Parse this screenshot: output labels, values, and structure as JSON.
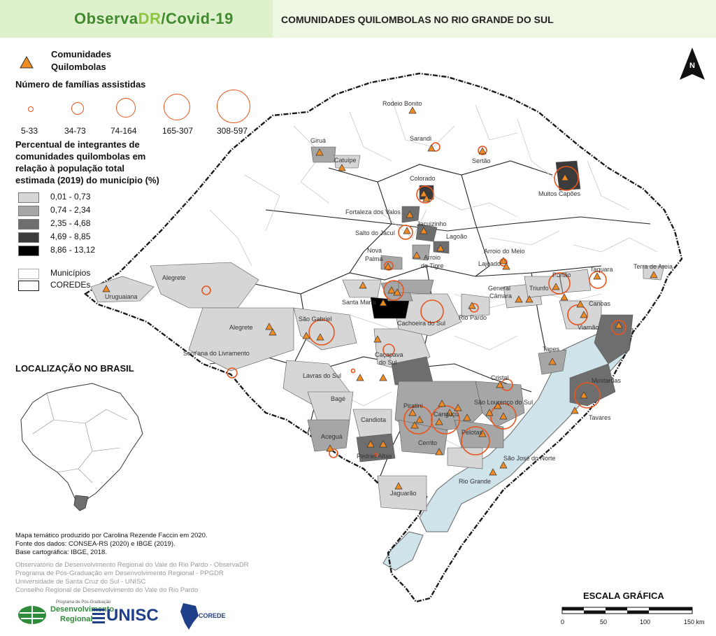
{
  "header": {
    "brand_part1": "Observa",
    "brand_part2": "DR",
    "brand_part3": "/Covid-19",
    "title": "COMUNIDADES QUILOMBOLAS NO RIO GRANDE DO SUL"
  },
  "legend": {
    "communities_label_line1": "Comunidades",
    "communities_label_line2": "Quilombolas",
    "families_title": "Número de famílias assistidas",
    "family_classes": [
      "5-33",
      "34-73",
      "74-164",
      "165-307",
      "308-597"
    ],
    "percent_title_lines": [
      "Percentual de integrantes de",
      "comunidades quilombolas em",
      "relação à população total",
      "estimada (2019) do município (%)"
    ],
    "percent_classes": [
      {
        "label": "0,01 - 0,73",
        "color": "#d6d6d6"
      },
      {
        "label": "0,74 - 2,34",
        "color": "#a6a6a6"
      },
      {
        "label": "2,35 - 4,68",
        "color": "#6e6e6e"
      },
      {
        "label": "4,69 - 8,85",
        "color": "#3b3b3b"
      },
      {
        "label": "8,86 - 13,12",
        "color": "#000000"
      }
    ],
    "municipios_label": "Municípios",
    "coredes_label": "COREDEs"
  },
  "inset": {
    "title": "LOCALIZAÇÃO NO BRASIL"
  },
  "credits": {
    "lines": [
      "Mapa temático produzido por Carolina Rezende Faccin em 2020.",
      "Fonte dos dados: CONSEA-RS (2020) e IBGE (2019).",
      "Base cartográfica: IBGE, 2018."
    ],
    "institutions": [
      "Observatório de Desenvolvimento Regional do Vale do Rio Pardo - ObservaDR",
      "Programa de Pós-Graduação em Desenvolvimento Regional - PPGDR",
      "Universidade de Santa Cruz do Sul - UNISC",
      "Conselho Regional de Desenvolvimento do Vale do Rio Pardo"
    ]
  },
  "logos": {
    "ppgdr_line1": "Programa de Pós-Graduação",
    "ppgdr_line2": "Desenvolvimento",
    "ppgdr_line3": "Regional",
    "unisc": "UNISC",
    "corede": "COREDE"
  },
  "scale": {
    "title": "ESCALA GRÁFICA",
    "ticks": [
      "0",
      "50",
      "100",
      "150 km"
    ]
  },
  "north": "N",
  "places": [
    "Rodeio Bonito",
    "Sarandi",
    "Giruá",
    "Catuípe",
    "Sertão",
    "Colorado",
    "Muitos Capões",
    "Fortaleza dos Valos",
    "Jacuizinho",
    "Salto do Jacuí",
    "Lagoão",
    "Nova",
    "Palma",
    "Arroio",
    "do Tigre",
    "Arroio do Meio",
    "Lajeado",
    "Alegrete",
    "Uruguaiana",
    "Santa Maria",
    "General",
    "Câmara",
    "Triunfo",
    "Portão",
    "Taquara",
    "Terra de Areia",
    "Canoas",
    "Viamão",
    "Alegrete",
    "São Gabriel",
    "Cachoeira do Sul",
    "Rio Pardo",
    "Sant'ana do Livramento",
    "Caçapava",
    "do Sul",
    "Tapes",
    "Lavras do Sul",
    "Cristal",
    "Mostardas",
    "Bagé",
    "Piratini",
    "Canguçu",
    "São Lourenço do Sul",
    "Tavares",
    "Candiota",
    "Aceguá",
    "Pelotas",
    "Cerrito",
    "Pedras Altas",
    "São José do Norte",
    "Rio Grande",
    "Jaguarão"
  ]
}
